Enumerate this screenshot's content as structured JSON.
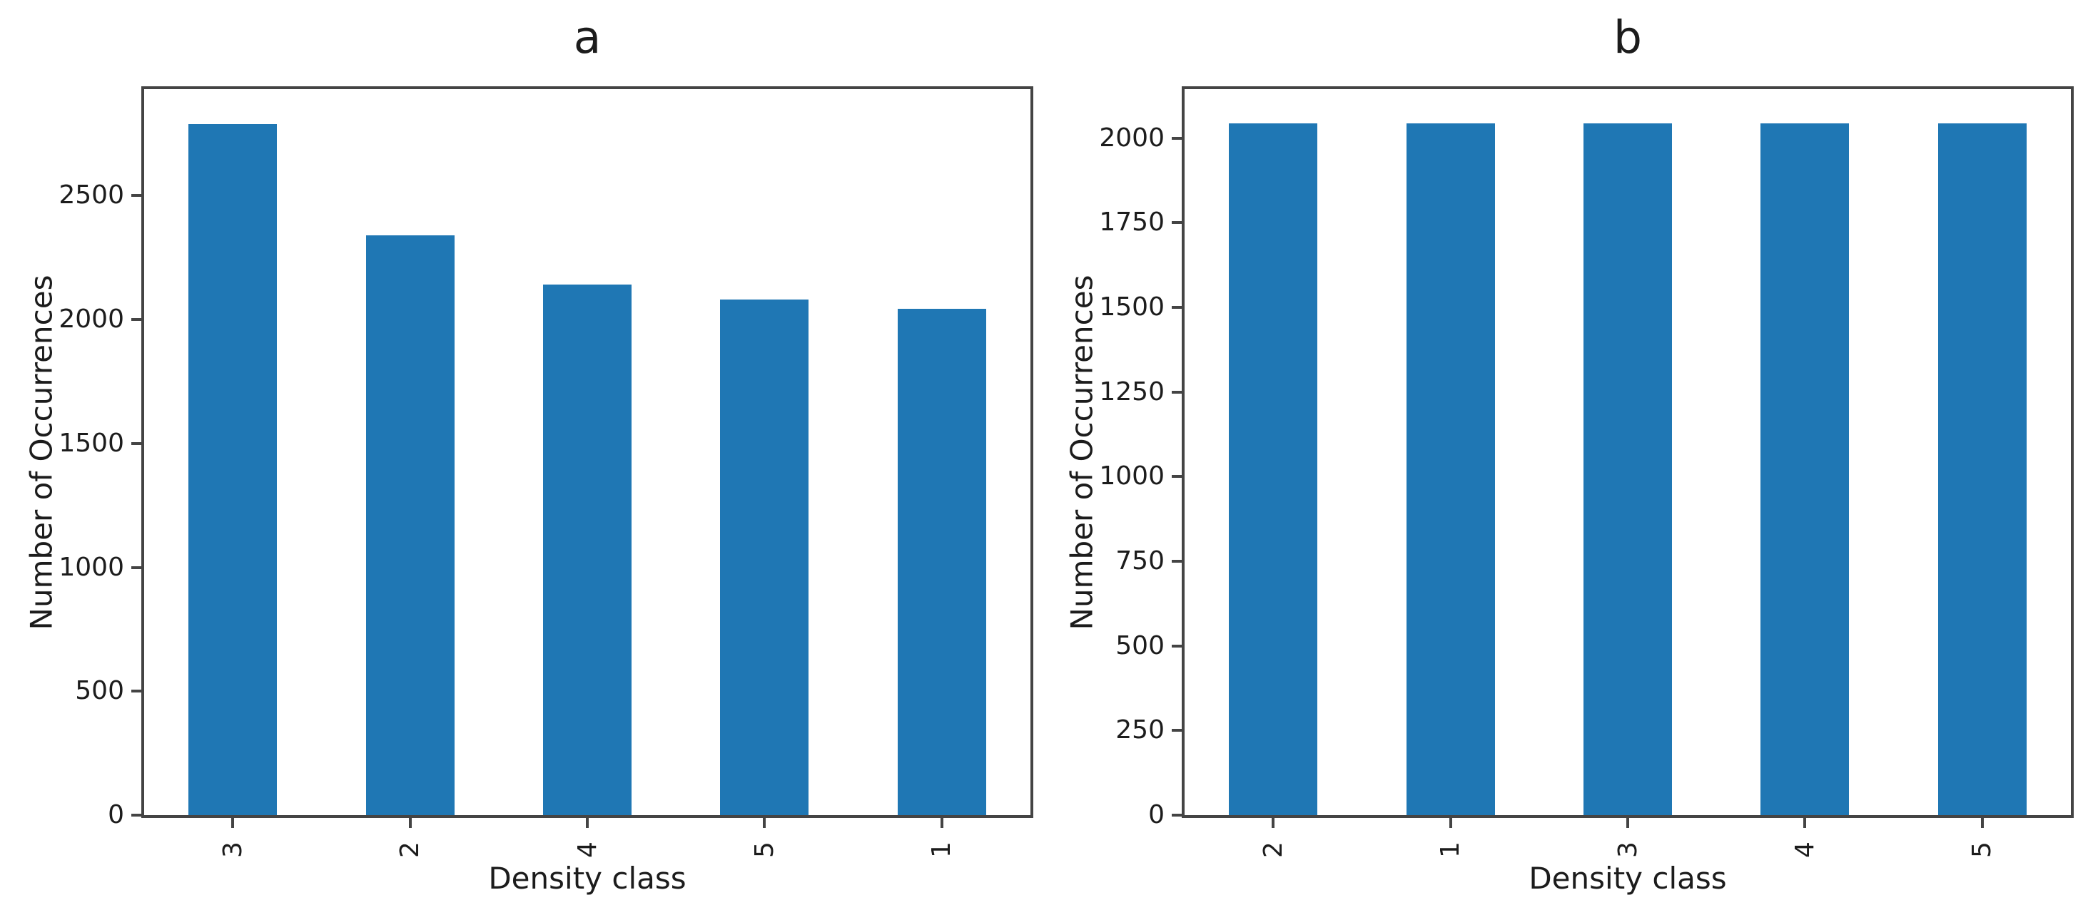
{
  "figure": {
    "background": "#ffffff",
    "bar_color": "#1f77b4",
    "axis_color": "#444444",
    "text_color": "#1c1c1c"
  },
  "chart_data": [
    {
      "id": "a",
      "type": "bar",
      "title": "a",
      "xlabel": "Density class",
      "ylabel": "Number of Occurrences",
      "categories": [
        "3",
        "2",
        "4",
        "5",
        "1"
      ],
      "values": [
        2790,
        2340,
        2140,
        2080,
        2043
      ],
      "yticks": [
        0,
        500,
        1000,
        1500,
        2000,
        2500
      ],
      "ylim": [
        0,
        2930
      ],
      "bar_width_fraction": 0.5,
      "x_tick_rotation_deg": 90,
      "grid": false,
      "legend": "none"
    },
    {
      "id": "b",
      "type": "bar",
      "title": "b",
      "xlabel": "Density class",
      "ylabel": "Number of Occurrences",
      "categories": [
        "2",
        "1",
        "3",
        "4",
        "5"
      ],
      "values": [
        2043,
        2043,
        2043,
        2043,
        2043
      ],
      "yticks": [
        0,
        250,
        500,
        750,
        1000,
        1250,
        1500,
        1750,
        2000
      ],
      "ylim": [
        0,
        2145
      ],
      "bar_width_fraction": 0.5,
      "x_tick_rotation_deg": 90,
      "grid": false,
      "legend": "none"
    }
  ]
}
